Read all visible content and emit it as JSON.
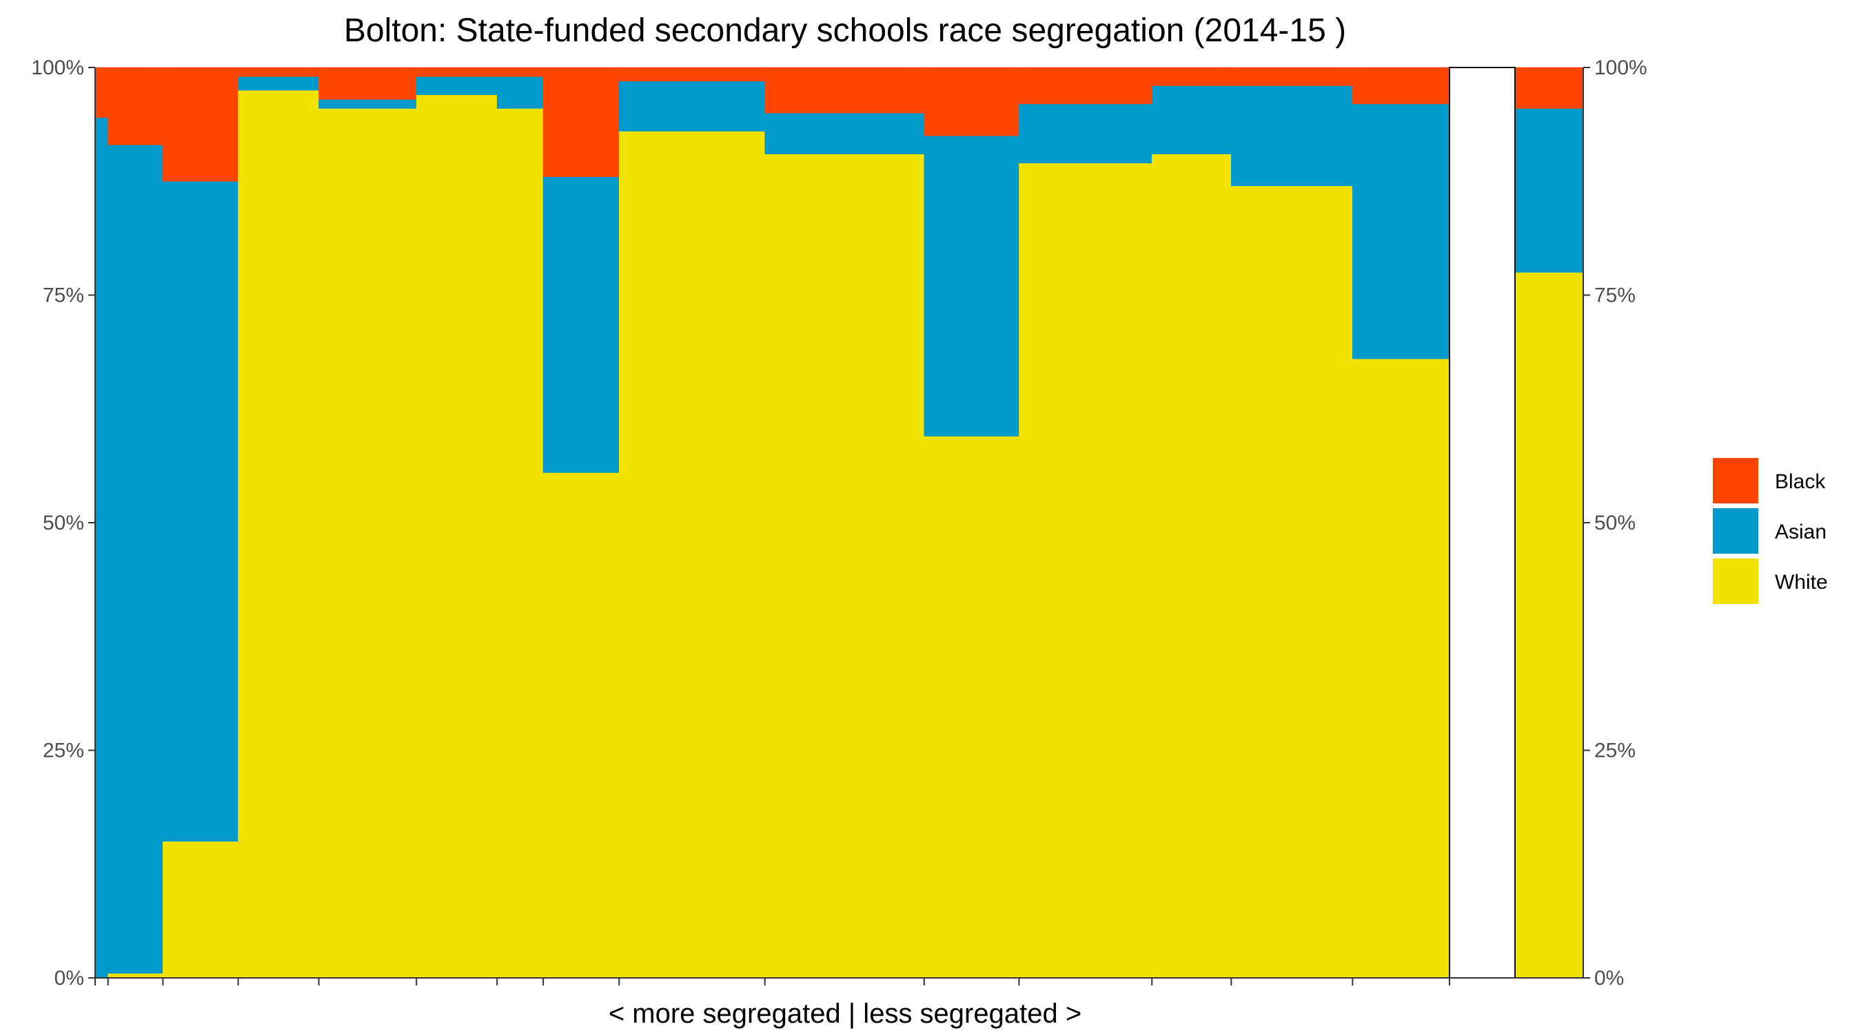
{
  "chart_data": {
    "type": "bar",
    "variant": "stacked-100-variable-width",
    "title": "Bolton: State-funded secondary schools race segregation (2014-15 )",
    "xlabel": "< more segregated | less segregated >",
    "ylabel": "",
    "ylim": [
      0,
      1
    ],
    "y_ticks": [
      "0%",
      "25%",
      "50%",
      "75%",
      "100%"
    ],
    "y_axis_sides": [
      "left",
      "right"
    ],
    "grid": false,
    "legend": {
      "position": "right",
      "entries": [
        "Black",
        "Asian",
        "White"
      ]
    },
    "colors": {
      "Black": "#FF4500",
      "Asian": "#0099CC",
      "White": "#F2E200"
    },
    "series_order_bottom_to_top": [
      "White",
      "Asian",
      "Other",
      "Black"
    ],
    "schools": [
      {
        "relative_width": 0.19,
        "White": 0.0,
        "Asian": 0.945,
        "Black": 0.055
      },
      {
        "relative_width": 0.81,
        "White": 0.005,
        "Asian": 0.91,
        "Black": 0.085
      },
      {
        "relative_width": 1.11,
        "White": 0.15,
        "Asian": 0.725,
        "Black": 0.125
      },
      {
        "relative_width": 1.19,
        "White": 0.975,
        "Asian": 0.015,
        "Black": 0.01
      },
      {
        "relative_width": 1.44,
        "White": 0.955,
        "Asian": 0.01,
        "Black": 0.035
      },
      {
        "relative_width": 1.19,
        "White": 0.97,
        "Asian": 0.02,
        "Black": 0.01
      },
      {
        "relative_width": 0.68,
        "White": 0.955,
        "Asian": 0.035,
        "Black": 0.01
      },
      {
        "relative_width": 1.12,
        "White": 0.555,
        "Asian": 0.33,
        "Black": 0.12
      },
      {
        "relative_width": 2.15,
        "White": 0.93,
        "Asian": 0.055,
        "Black": 0.015
      },
      {
        "relative_width": 2.35,
        "White": 0.905,
        "Asian": 0.045,
        "Black": 0.05
      },
      {
        "relative_width": 1.4,
        "White": 0.595,
        "Asian": 0.33,
        "Black": 0.075
      },
      {
        "relative_width": 1.96,
        "White": 0.895,
        "Asian": 0.065,
        "Black": 0.04
      },
      {
        "relative_width": 1.17,
        "White": 0.905,
        "Asian": 0.075,
        "Black": 0.02
      },
      {
        "relative_width": 1.79,
        "White": 0.87,
        "Asian": 0.11,
        "Black": 0.02
      },
      {
        "relative_width": 1.43,
        "White": 0.68,
        "Asian": 0.28,
        "Black": 0.04
      }
    ],
    "overall": {
      "White": 0.775,
      "Asian": 0.18,
      "Black": 0.045
    }
  }
}
